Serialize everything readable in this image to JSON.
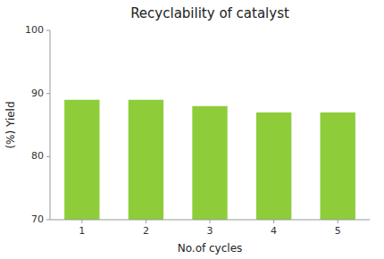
{
  "chart_data": {
    "type": "bar",
    "title": "Recyclability of catalyst",
    "xlabel": "No.of cycles",
    "ylabel": "(%) Yield",
    "categories": [
      1,
      2,
      3,
      4,
      5
    ],
    "values": [
      89.0,
      89.0,
      88.0,
      87.0,
      87.0
    ],
    "color": "#8fcc3a",
    "ylim": [
      70,
      100
    ],
    "yticks": [
      70,
      80,
      90,
      100
    ],
    "grid": false
  }
}
